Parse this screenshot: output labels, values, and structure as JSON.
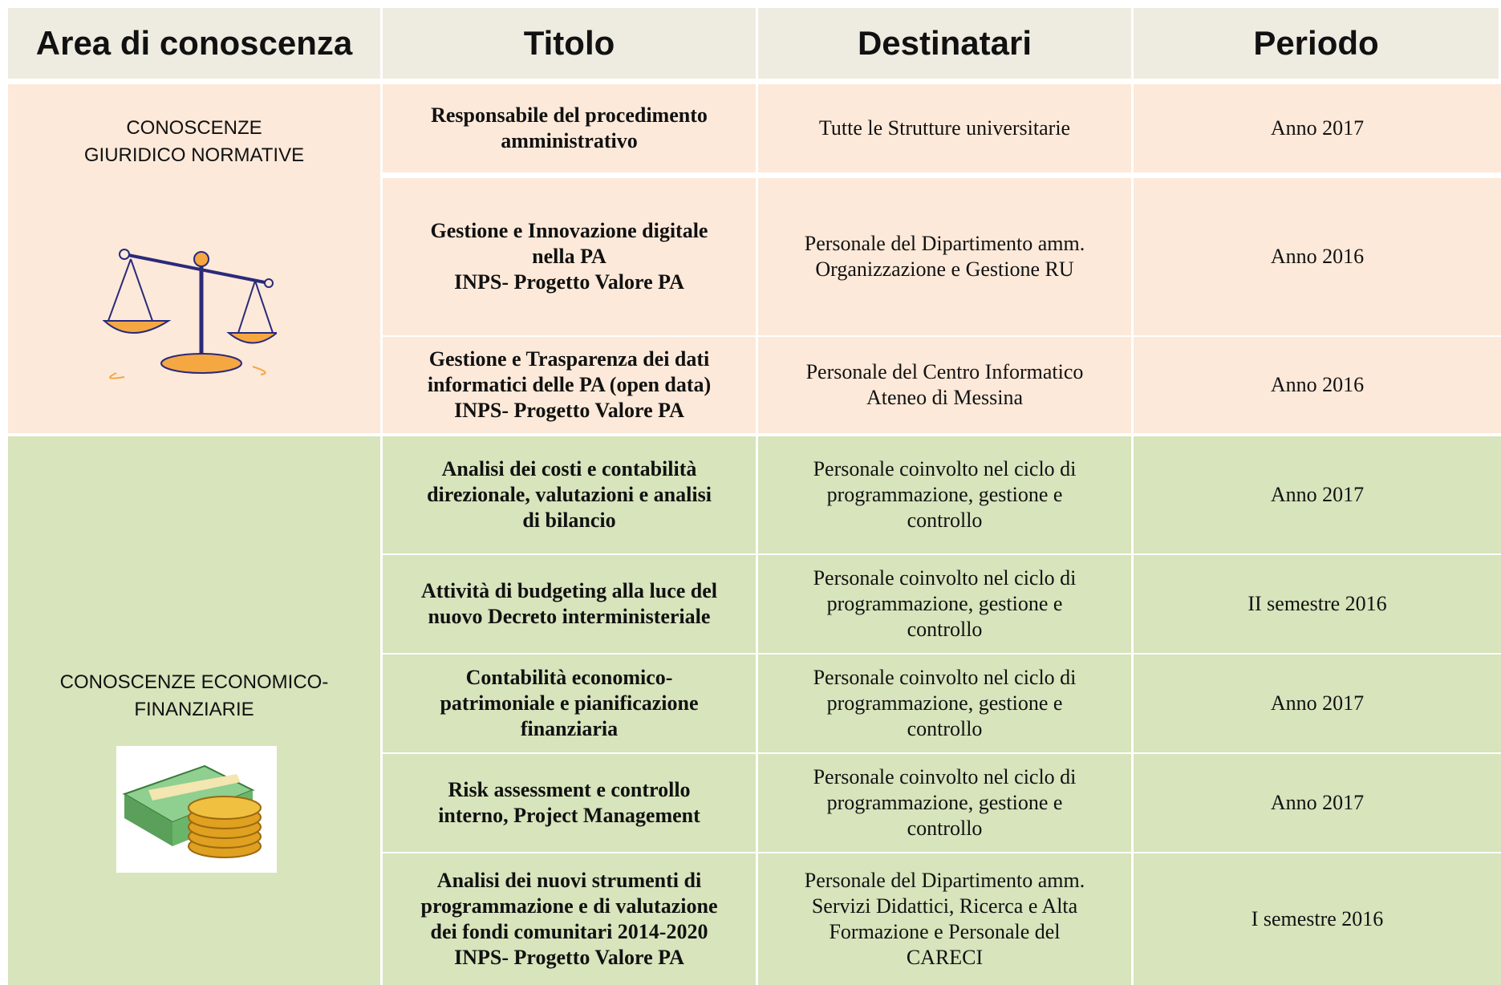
{
  "header": {
    "columns": [
      "Area di conoscenza",
      "Titolo",
      "Destinatari",
      "Periodo"
    ]
  },
  "groups": [
    {
      "area": [
        "CONOSCENZE",
        "GIURIDICO NORMATIVE"
      ],
      "rows": [
        {
          "titolo": [
            "Responsabile del procedimento",
            "amministrativo"
          ],
          "destinatari": [
            "Tutte le Strutture universitarie"
          ],
          "periodo": "Anno 2017"
        },
        {
          "titolo": [
            "Gestione e Innovazione digitale",
            "nella PA",
            "INPS- Progetto Valore PA"
          ],
          "destinatari": [
            "Personale del Dipartimento amm.",
            "Organizzazione e Gestione RU"
          ],
          "periodo": "Anno 2016"
        },
        {
          "titolo": [
            "Gestione e Trasparenza dei dati",
            "informatici delle PA (open data)",
            "INPS- Progetto Valore PA"
          ],
          "destinatari": [
            "Personale del  Centro Informatico",
            "Ateneo di Messina"
          ],
          "periodo": "Anno 2016"
        }
      ]
    },
    {
      "area": [
        "CONOSCENZE ECONOMICO-",
        "FINANZIARIE"
      ],
      "rows": [
        {
          "titolo": [
            "Analisi dei costi e contabilità",
            "direzionale, valutazioni e analisi",
            "di bilancio"
          ],
          "destinatari": [
            "Personale coinvolto nel ciclo di",
            "programmazione, gestione e",
            "controllo"
          ],
          "periodo": "Anno 2017"
        },
        {
          "titolo": [
            "Attività di budgeting alla luce del",
            "nuovo Decreto interministeriale"
          ],
          "destinatari": [
            "Personale coinvolto nel ciclo di",
            "programmazione, gestione e",
            "controllo"
          ],
          "periodo": "II semestre 2016"
        },
        {
          "titolo": [
            "Contabilità economico-",
            "patrimoniale e pianificazione",
            "finanziaria"
          ],
          "destinatari": [
            "Personale coinvolto nel ciclo di",
            "programmazione, gestione e",
            "controllo"
          ],
          "periodo": "Anno 2017"
        },
        {
          "titolo": [
            "Risk assessment e controllo",
            "interno, Project Management"
          ],
          "destinatari": [
            "Personale coinvolto nel ciclo di",
            "programmazione, gestione e",
            "controllo"
          ],
          "periodo": "Anno 2017"
        },
        {
          "titolo": [
            "Analisi dei nuovi strumenti di",
            "programmazione e di valutazione",
            "dei fondi comunitari 2014-2020",
            "INPS- Progetto Valore PA"
          ],
          "destinatari": [
            "Personale  del Dipartimento amm.",
            "Servizi Didattici, Ricerca e Alta",
            "Formazione e Personale del",
            "CARECI"
          ],
          "periodo": "I semestre 2016"
        }
      ]
    }
  ]
}
